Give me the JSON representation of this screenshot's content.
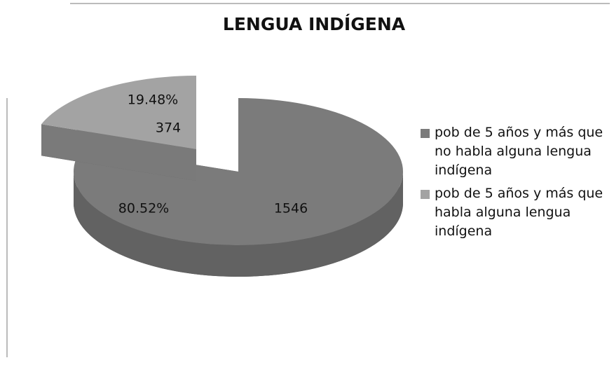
{
  "chart_data": {
    "type": "pie3d",
    "title": "LENGUA INDÍGENA",
    "categories": [
      "pob de 5 años y más que no habla alguna lengua indígena",
      "pob de 5 años y más que habla alguna lengua indígena"
    ],
    "values": [
      1546,
      374
    ],
    "percent_labels": [
      "80.52%",
      "19.48%"
    ],
    "colors": [
      "#7b7b7b",
      "#a3a3a3"
    ],
    "legend": "right"
  }
}
